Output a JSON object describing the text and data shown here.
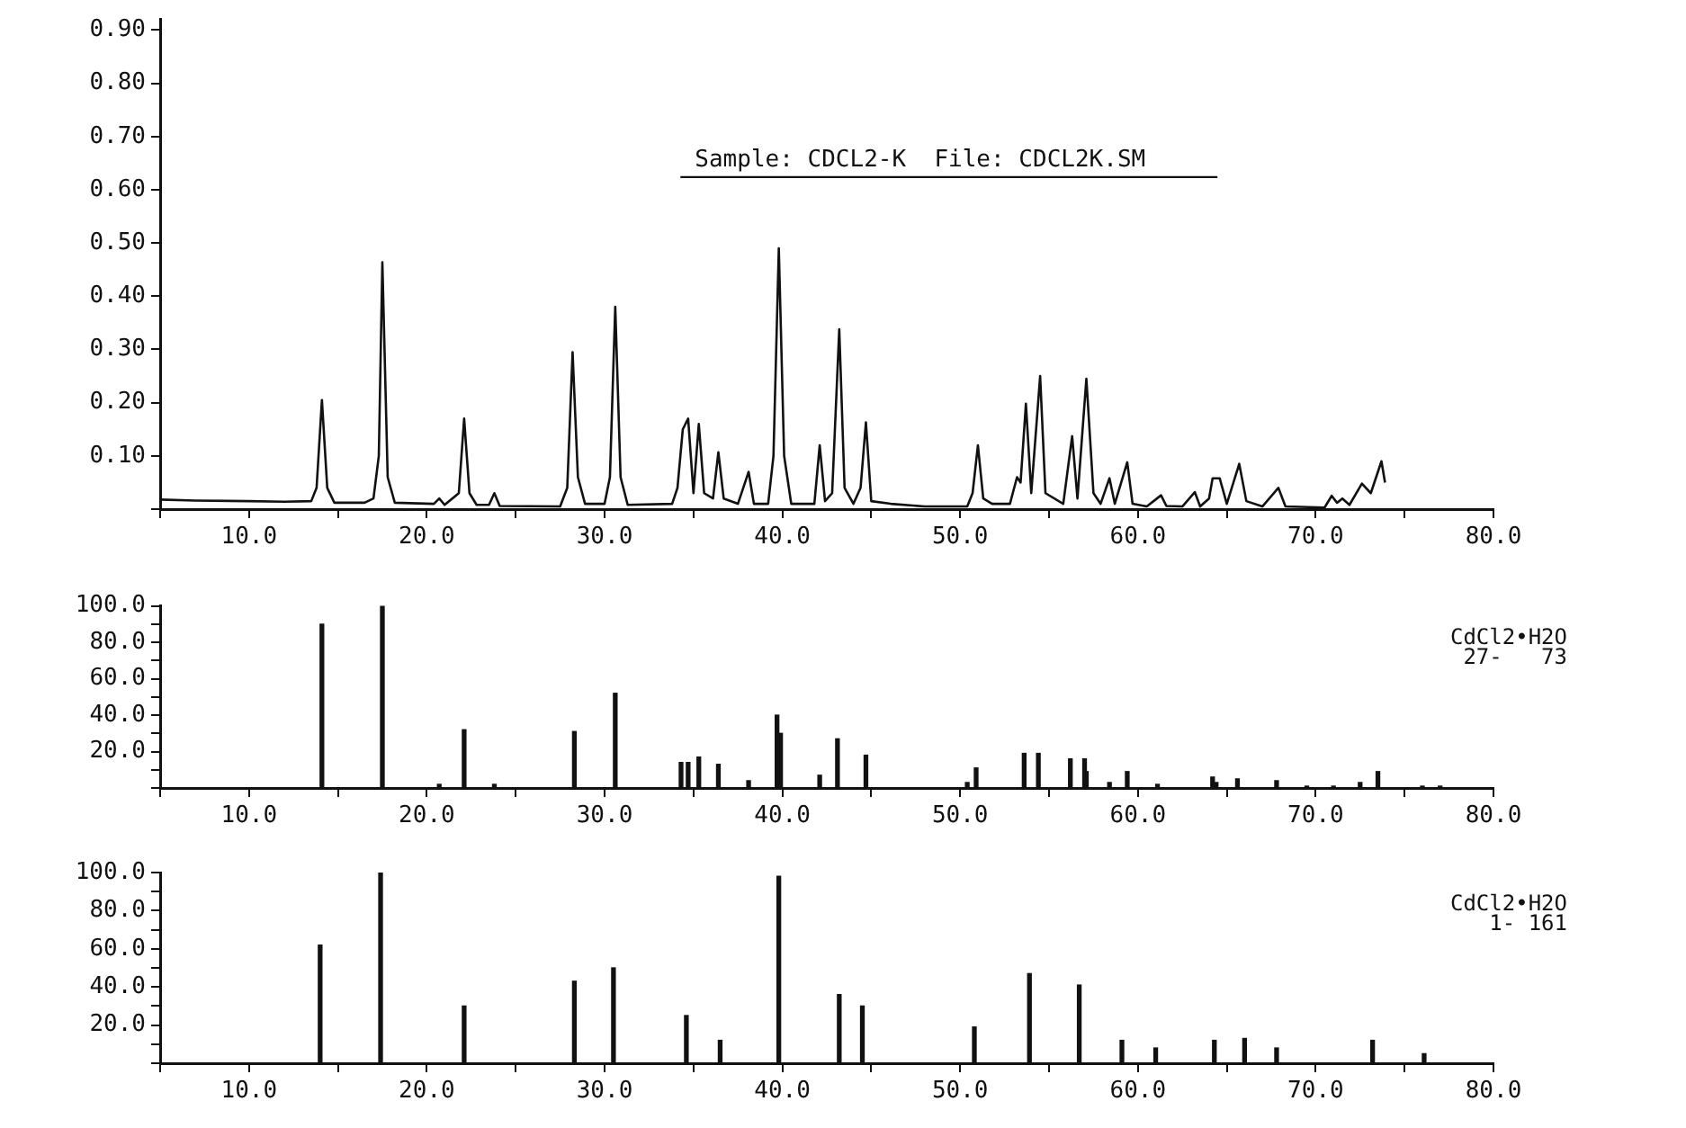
{
  "chart_data": [
    {
      "type": "line",
      "title": "Sample: CDCL2-K  File: CDCL2K.SM",
      "color": "#111111",
      "x": [
        5,
        7,
        10,
        12,
        13.5,
        13.8,
        14.1,
        14.4,
        14.8,
        16.5,
        17.0,
        17.3,
        17.5,
        17.8,
        18.2,
        20.4,
        20.7,
        21.0,
        21.8,
        22.1,
        22.4,
        22.8,
        23.5,
        23.8,
        24.1,
        27.5,
        27.9,
        28.2,
        28.5,
        28.9,
        30.0,
        30.3,
        30.6,
        30.9,
        31.3,
        33.8,
        34.1,
        34.4,
        34.7,
        35.0,
        35.3,
        35.6,
        36.1,
        36.4,
        36.7,
        37.5,
        38.1,
        38.4,
        39.2,
        39.5,
        39.8,
        40.1,
        40.5,
        41.8,
        42.1,
        42.4,
        42.8,
        43.2,
        43.5,
        44.0,
        44.4,
        44.7,
        45.0,
        46.1,
        48,
        50.4,
        50.7,
        51.0,
        51.3,
        51.8,
        52.8,
        53.2,
        53.4,
        53.7,
        54.0,
        54.5,
        54.8,
        55.8,
        56.3,
        56.6,
        57.1,
        57.5,
        57.9,
        58.4,
        58.7,
        59.4,
        59.7,
        60.5,
        61.3,
        61.6,
        62.5,
        63.2,
        63.5,
        64.0,
        64.2,
        64.6,
        65.0,
        65.7,
        66.1,
        67.0,
        67.9,
        68.3,
        70.5,
        70.9,
        71.2,
        71.5,
        71.9,
        72.6,
        73.1,
        73.7,
        73.9
      ],
      "values": [
        0.018,
        0.016,
        0.015,
        0.014,
        0.015,
        0.04,
        0.205,
        0.04,
        0.012,
        0.012,
        0.02,
        0.1,
        0.464,
        0.06,
        0.012,
        0.01,
        0.02,
        0.008,
        0.03,
        0.17,
        0.03,
        0.008,
        0.008,
        0.03,
        0.006,
        0.005,
        0.04,
        0.295,
        0.06,
        0.01,
        0.01,
        0.06,
        0.38,
        0.06,
        0.008,
        0.01,
        0.04,
        0.15,
        0.17,
        0.03,
        0.16,
        0.03,
        0.02,
        0.107,
        0.02,
        0.01,
        0.07,
        0.01,
        0.01,
        0.1,
        0.49,
        0.1,
        0.01,
        0.01,
        0.12,
        0.015,
        0.03,
        0.338,
        0.04,
        0.01,
        0.04,
        0.163,
        0.015,
        0.01,
        0.005,
        0.005,
        0.03,
        0.12,
        0.02,
        0.01,
        0.01,
        0.06,
        0.05,
        0.198,
        0.03,
        0.25,
        0.03,
        0.01,
        0.137,
        0.02,
        0.245,
        0.03,
        0.01,
        0.058,
        0.01,
        0.088,
        0.01,
        0.005,
        0.026,
        0.006,
        0.005,
        0.032,
        0.005,
        0.02,
        0.058,
        0.058,
        0.01,
        0.085,
        0.015,
        0.005,
        0.04,
        0.005,
        0.003,
        0.025,
        0.012,
        0.02,
        0.008,
        0.048,
        0.03,
        0.09,
        0.05
      ],
      "xlim": [
        5,
        80
      ],
      "xticks": [
        {
          "value": 5,
          "label": null
        },
        {
          "value": 10,
          "label": "10.0"
        },
        {
          "value": 15,
          "label": null
        },
        {
          "value": 20,
          "label": "20.0"
        },
        {
          "value": 25,
          "label": null
        },
        {
          "value": 30,
          "label": "30.0"
        },
        {
          "value": 35,
          "label": null
        },
        {
          "value": 40,
          "label": "40.0"
        },
        {
          "value": 45,
          "label": null
        },
        {
          "value": 50,
          "label": "50.0"
        },
        {
          "value": 55,
          "label": null
        },
        {
          "value": 60,
          "label": "60.0"
        },
        {
          "value": 65,
          "label": null
        },
        {
          "value": 70,
          "label": "70.0"
        },
        {
          "value": 75,
          "label": null
        },
        {
          "value": 80,
          "label": "80.0"
        }
      ],
      "ylim": [
        0,
        0.92
      ],
      "yticks": [
        {
          "value": 0,
          "label": null
        },
        {
          "value": 0.1,
          "label": "0.10"
        },
        {
          "value": 0.2,
          "label": "0.20"
        },
        {
          "value": 0.3,
          "label": "0.30"
        },
        {
          "value": 0.4,
          "label": "0.40"
        },
        {
          "value": 0.5,
          "label": "0.50"
        },
        {
          "value": 0.6,
          "label": "0.60"
        },
        {
          "value": 0.7,
          "label": "0.70"
        },
        {
          "value": 0.8,
          "label": "0.80"
        },
        {
          "value": 0.9,
          "label": "0.90"
        }
      ]
    },
    {
      "type": "bar",
      "annotations": [
        "CdCl2•H2O",
        "27-   73"
      ],
      "color": "#111111",
      "x": [
        14.1,
        17.5,
        20.7,
        22.1,
        23.8,
        28.3,
        30.6,
        34.3,
        34.7,
        35.3,
        36.4,
        38.1,
        39.7,
        39.9,
        42.1,
        43.1,
        44.7,
        50.4,
        50.9,
        53.6,
        54.4,
        56.2,
        57.0,
        57.1,
        58.4,
        59.4,
        61.1,
        64.2,
        64.4,
        65.6,
        67.8,
        69.5,
        71.0,
        72.5,
        73.5,
        76.0,
        77.0
      ],
      "values": [
        90,
        100,
        2,
        32,
        2,
        31,
        52,
        14,
        14,
        17,
        13,
        4,
        40,
        30,
        7,
        27,
        18,
        3,
        11,
        19,
        19,
        16,
        16,
        9,
        3,
        9,
        2,
        6,
        3,
        5,
        4,
        1,
        1,
        3,
        9,
        1,
        1
      ],
      "xlim": [
        5,
        80
      ],
      "xticks": [
        {
          "value": 5,
          "label": null
        },
        {
          "value": 10,
          "label": "10.0"
        },
        {
          "value": 15,
          "label": null
        },
        {
          "value": 20,
          "label": "20.0"
        },
        {
          "value": 25,
          "label": null
        },
        {
          "value": 30,
          "label": "30.0"
        },
        {
          "value": 35,
          "label": null
        },
        {
          "value": 40,
          "label": "40.0"
        },
        {
          "value": 45,
          "label": null
        },
        {
          "value": 50,
          "label": "50.0"
        },
        {
          "value": 55,
          "label": null
        },
        {
          "value": 60,
          "label": "60.0"
        },
        {
          "value": 65,
          "label": null
        },
        {
          "value": 70,
          "label": "70.0"
        },
        {
          "value": 75,
          "label": null
        },
        {
          "value": 80,
          "label": "80.0"
        }
      ],
      "ylim": [
        0,
        100
      ],
      "yticks": [
        {
          "value": 0,
          "label": null
        },
        {
          "value": 10,
          "label": null
        },
        {
          "value": 20,
          "label": "20.0"
        },
        {
          "value": 30,
          "label": null
        },
        {
          "value": 40,
          "label": "40.0"
        },
        {
          "value": 50,
          "label": null
        },
        {
          "value": 60,
          "label": "60.0"
        },
        {
          "value": 70,
          "label": null
        },
        {
          "value": 80,
          "label": "80.0"
        },
        {
          "value": 90,
          "label": null
        },
        {
          "value": 100,
          "label": "100.0"
        }
      ]
    },
    {
      "type": "bar",
      "annotations": [
        "CdCl2•H2O",
        "1- 161"
      ],
      "color": "#111111",
      "x": [
        14.0,
        17.4,
        22.1,
        28.3,
        30.5,
        34.6,
        36.5,
        39.8,
        43.2,
        44.5,
        50.8,
        53.9,
        56.7,
        59.1,
        61.0,
        64.3,
        66.0,
        67.8,
        73.2,
        76.1
      ],
      "values": [
        62,
        100,
        30,
        43,
        50,
        25,
        12,
        98,
        36,
        30,
        19,
        47,
        41,
        12,
        8,
        12,
        13,
        8,
        12,
        5
      ],
      "xlim": [
        5,
        80
      ],
      "xticks": [
        {
          "value": 5,
          "label": null
        },
        {
          "value": 10,
          "label": "10.0"
        },
        {
          "value": 15,
          "label": null
        },
        {
          "value": 20,
          "label": "20.0"
        },
        {
          "value": 25,
          "label": null
        },
        {
          "value": 30,
          "label": "30.0"
        },
        {
          "value": 35,
          "label": null
        },
        {
          "value": 40,
          "label": "40.0"
        },
        {
          "value": 45,
          "label": null
        },
        {
          "value": 50,
          "label": "50.0"
        },
        {
          "value": 55,
          "label": null
        },
        {
          "value": 60,
          "label": "60.0"
        },
        {
          "value": 65,
          "label": null
        },
        {
          "value": 70,
          "label": "70.0"
        },
        {
          "value": 75,
          "label": null
        },
        {
          "value": 80,
          "label": "80.0"
        }
      ],
      "ylim": [
        0,
        100
      ],
      "yticks": [
        {
          "value": 0,
          "label": null
        },
        {
          "value": 10,
          "label": null
        },
        {
          "value": 20,
          "label": "20.0"
        },
        {
          "value": 30,
          "label": null
        },
        {
          "value": 40,
          "label": "40.0"
        },
        {
          "value": 50,
          "label": null
        },
        {
          "value": 60,
          "label": "60.0"
        },
        {
          "value": 70,
          "label": null
        },
        {
          "value": 80,
          "label": "80.0"
        },
        {
          "value": 90,
          "label": null
        },
        {
          "value": 100,
          "label": "100.0"
        }
      ]
    }
  ]
}
